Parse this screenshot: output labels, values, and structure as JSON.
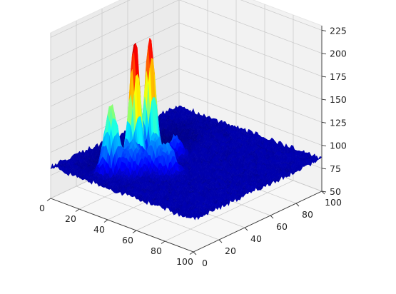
{
  "chart_data": {
    "type": "surface",
    "colormap": "jet",
    "grid": true,
    "x_ticks": [
      "0",
      "20",
      "40",
      "60",
      "80",
      "100"
    ],
    "y_ticks": [
      "0",
      "20",
      "40",
      "60",
      "80",
      "100"
    ],
    "z_ticks": [
      "50",
      "75",
      "100",
      "125",
      "150",
      "175",
      "200",
      "225"
    ],
    "xlim": [
      0,
      100
    ],
    "ylim": [
      0,
      100
    ],
    "zlim": [
      50,
      230
    ],
    "baseline_z": 85,
    "peaks": [
      {
        "x": 32,
        "y": 30,
        "z": 225
      },
      {
        "x": 30,
        "y": 44,
        "z": 220
      },
      {
        "x": 28,
        "y": 16,
        "z": 160
      },
      {
        "x": 44,
        "y": 32,
        "z": 125
      },
      {
        "x": 52,
        "y": 34,
        "z": 115
      },
      {
        "x": 40,
        "y": 52,
        "z": 108
      },
      {
        "x": 38,
        "y": 22,
        "z": 120
      }
    ]
  }
}
